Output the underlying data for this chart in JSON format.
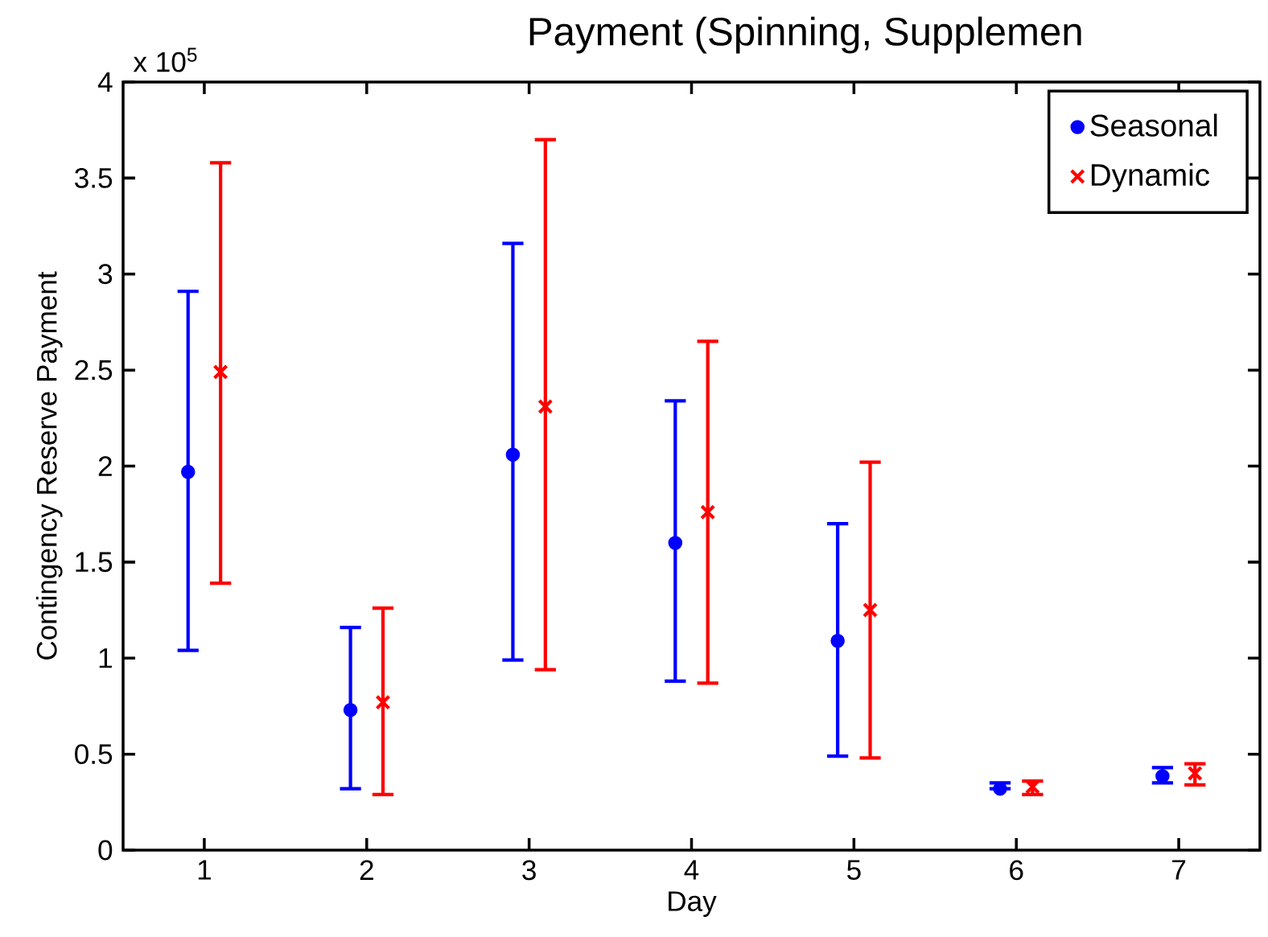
{
  "chart_data": {
    "type": "scatter",
    "title": "Payment (Spinning, Supplemen",
    "xlabel": "Day",
    "ylabel": "Contingency Reserve Payment",
    "annotations": [
      "x 10$^{5}$"
    ],
    "xlim": [
      0.5,
      7.5
    ],
    "ylim": [
      0,
      4
    ],
    "xticks": [
      1,
      2,
      3,
      4,
      5,
      6,
      7
    ],
    "yticks": [
      0,
      0.5,
      1,
      1.5,
      2,
      2.5,
      3,
      3.5,
      4
    ],
    "legend": "top right",
    "series": [
      {
        "name": "Seasonal",
        "color": "#0000ff",
        "marker": "circle",
        "x": [
          0.9,
          1.9,
          2.9,
          3.9,
          4.9,
          5.9,
          6.9
        ],
        "values": [
          1.97,
          0.73,
          2.06,
          1.6,
          1.09,
          0.32,
          0.385
        ],
        "errors": [
          [
            1.04,
            2.91
          ],
          [
            0.32,
            1.16
          ],
          [
            0.99,
            3.16
          ],
          [
            0.88,
            2.34
          ],
          [
            0.49,
            1.7
          ],
          [
            0.32,
            0.35
          ],
          [
            0.35,
            0.43
          ]
        ]
      },
      {
        "name": "Dynamic",
        "color": "#ff0000",
        "marker": "cross",
        "x": [
          1.1,
          2.1,
          3.1,
          4.1,
          5.1,
          6.1,
          7.1
        ],
        "values": [
          2.49,
          0.77,
          2.31,
          1.76,
          1.25,
          0.33,
          0.4
        ],
        "errors": [
          [
            1.39,
            3.58
          ],
          [
            0.29,
            1.26
          ],
          [
            0.94,
            3.7
          ],
          [
            0.87,
            2.65
          ],
          [
            0.48,
            2.02
          ],
          [
            0.29,
            0.36
          ],
          [
            0.34,
            0.45
          ]
        ]
      }
    ]
  }
}
